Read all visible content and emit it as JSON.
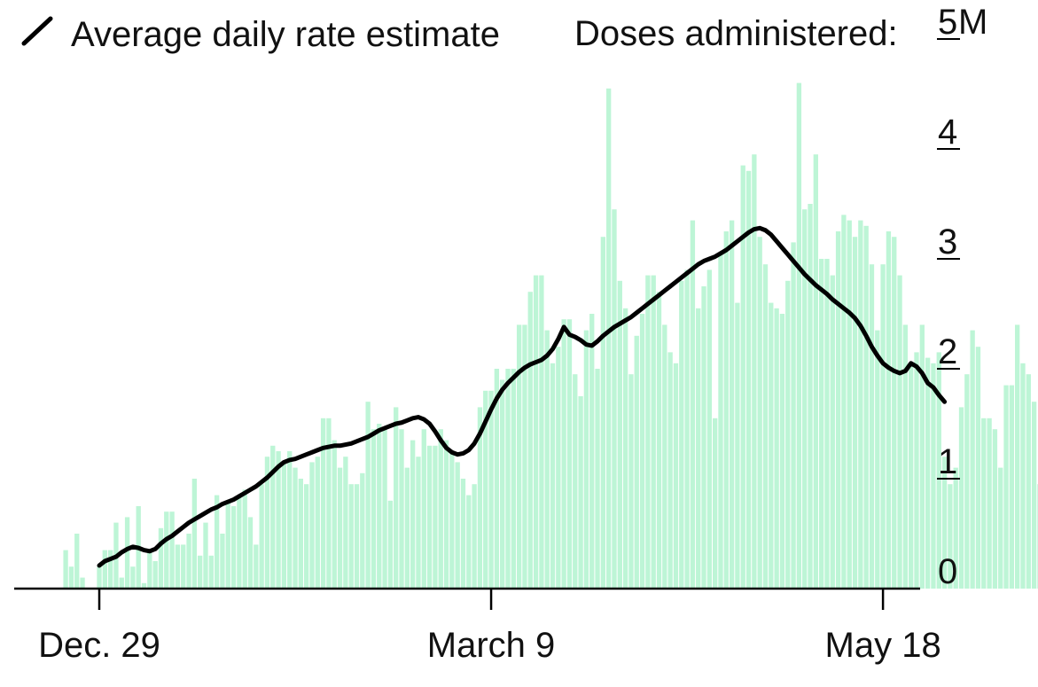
{
  "legend": {
    "line_label": "Average daily rate estimate"
  },
  "units_label": "Doses administered:",
  "colors": {
    "bar": "#bdf5d6",
    "line": "#000000",
    "axis": "#000000"
  },
  "chart_data": {
    "type": "bar",
    "title": "",
    "xlabel": "",
    "ylabel": "Doses administered",
    "ylim": [
      0,
      5
    ],
    "y_unit": "M",
    "y_ticks": [
      {
        "value": 0,
        "label": "0"
      },
      {
        "value": 1,
        "label": "1"
      },
      {
        "value": 2,
        "label": "2"
      },
      {
        "value": 3,
        "label": "3"
      },
      {
        "value": 4,
        "label": "4"
      },
      {
        "value": 5,
        "label": "5"
      }
    ],
    "x_ticks": [
      {
        "index": 6,
        "label": "Dec. 29"
      },
      {
        "index": 76,
        "label": "March 9"
      },
      {
        "index": 146,
        "label": "May 18"
      }
    ],
    "grid": false,
    "legend_position": "top-left",
    "bar_values": [
      0.35,
      0.2,
      0.5,
      0.1,
      0.0,
      0.0,
      0.2,
      0.35,
      0.35,
      0.6,
      0.1,
      0.65,
      0.2,
      0.75,
      0.05,
      0.35,
      0.25,
      0.55,
      0.7,
      0.7,
      0.4,
      0.4,
      0.5,
      1.0,
      0.3,
      0.6,
      0.3,
      0.85,
      0.5,
      0.8,
      0.75,
      0.85,
      0.9,
      0.65,
      0.4,
      0.95,
      1.2,
      1.3,
      1.25,
      1.15,
      1.25,
      1.1,
      1.0,
      0.95,
      1.15,
      1.2,
      1.55,
      1.55,
      1.35,
      1.1,
      1.2,
      0.95,
      0.95,
      1.05,
      1.7,
      1.45,
      1.5,
      1.45,
      0.8,
      1.65,
      1.45,
      1.1,
      1.35,
      1.2,
      1.45,
      1.3,
      1.3,
      1.45,
      1.35,
      1.25,
      1.15,
      1.0,
      0.85,
      0.95,
      1.65,
      1.8,
      1.8,
      2.0,
      1.9,
      2.0,
      2.0,
      2.4,
      2.4,
      2.7,
      2.85,
      2.85,
      2.35,
      2.05,
      2.2,
      2.45,
      2.45,
      1.95,
      1.75,
      2.35,
      2.5,
      2.0,
      3.2,
      4.55,
      3.45,
      2.8,
      2.55,
      1.95,
      2.3,
      2.5,
      2.85,
      2.85,
      2.7,
      2.4,
      2.15,
      2.05,
      2.8,
      2.9,
      3.35,
      2.55,
      2.75,
      2.9,
      1.55,
      3.05,
      3.25,
      3.35,
      2.6,
      3.85,
      3.8,
      3.95,
      3.2,
      2.95,
      2.6,
      2.55,
      2.5,
      2.8,
      3.15,
      4.6,
      3.45,
      3.5,
      3.95,
      3.0,
      3.0,
      2.85,
      3.25,
      3.4,
      3.35,
      3.2,
      3.35,
      3.3,
      2.95,
      2.35,
      2.95,
      3.25,
      3.2,
      2.85,
      2.4,
      2.05,
      2.15,
      2.4,
      2.1,
      2.05,
      2.15,
      1.2,
      0.95,
      1.1,
      1.65,
      1.95,
      2.35,
      2.2,
      1.55,
      1.55,
      1.45,
      1.1,
      1.85,
      1.85,
      2.4,
      2.05,
      1.95,
      1.7,
      0.95
    ],
    "bar_start_index": 0,
    "line_start_index": 6,
    "line_values": [
      0.21,
      0.25,
      0.27,
      0.29,
      0.33,
      0.36,
      0.38,
      0.37,
      0.35,
      0.34,
      0.36,
      0.41,
      0.45,
      0.48,
      0.52,
      0.56,
      0.6,
      0.63,
      0.66,
      0.69,
      0.72,
      0.74,
      0.77,
      0.79,
      0.81,
      0.84,
      0.87,
      0.9,
      0.93,
      0.97,
      1.01,
      1.06,
      1.11,
      1.15,
      1.17,
      1.18,
      1.2,
      1.22,
      1.24,
      1.26,
      1.28,
      1.29,
      1.3,
      1.3,
      1.31,
      1.32,
      1.34,
      1.36,
      1.38,
      1.41,
      1.44,
      1.46,
      1.48,
      1.5,
      1.51,
      1.53,
      1.55,
      1.56,
      1.54,
      1.5,
      1.43,
      1.35,
      1.28,
      1.24,
      1.22,
      1.23,
      1.26,
      1.32,
      1.41,
      1.52,
      1.63,
      1.73,
      1.81,
      1.87,
      1.92,
      1.97,
      2.01,
      2.04,
      2.06,
      2.08,
      2.12,
      2.18,
      2.27,
      2.38,
      2.31,
      2.29,
      2.26,
      2.22,
      2.21,
      2.25,
      2.3,
      2.34,
      2.38,
      2.41,
      2.44,
      2.47,
      2.51,
      2.55,
      2.59,
      2.63,
      2.67,
      2.71,
      2.75,
      2.79,
      2.83,
      2.87,
      2.91,
      2.95,
      2.98,
      3.0,
      3.02,
      3.05,
      3.08,
      3.12,
      3.16,
      3.2,
      3.24,
      3.27,
      3.28,
      3.26,
      3.22,
      3.16,
      3.1,
      3.04,
      2.98,
      2.92,
      2.86,
      2.81,
      2.76,
      2.72,
      2.68,
      2.63,
      2.59,
      2.55,
      2.51,
      2.46,
      2.39,
      2.3,
      2.2,
      2.12,
      2.05,
      2.01,
      1.98,
      1.96,
      1.98,
      2.05,
      2.02,
      1.96,
      1.87,
      1.83,
      1.76,
      1.7
    ]
  }
}
